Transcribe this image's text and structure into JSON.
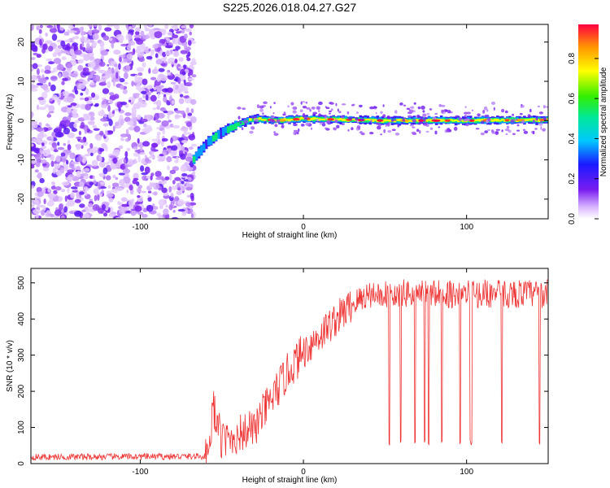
{
  "chart_data": [
    {
      "type": "heatmap",
      "title": "S225.2026.018.04.27.G27",
      "xlabel": "Height of straight line (km)",
      "ylabel": "Frequency (Hz)",
      "xlim": [
        -167,
        150
      ],
      "ylim": [
        -25,
        24.5
      ],
      "xticks": [
        -100,
        0,
        100
      ],
      "yticks": [
        20,
        10,
        0,
        -10,
        -20
      ],
      "xtick_labels": [
        "-100",
        "0",
        "100"
      ],
      "ytick_labels": [
        "20",
        "10",
        "0",
        "-10",
        "-20"
      ],
      "colorbar": {
        "label": "Normalized spectral amplitude",
        "range": [
          0,
          0.97
        ],
        "ticks": [
          0,
          0.2,
          0.4,
          0.6,
          0.8
        ],
        "tick_labels": [
          "0.0",
          "0.2",
          "0.4",
          "0.6",
          "0.8"
        ]
      },
      "noise_region_x": [
        -167,
        -67
      ],
      "signal_track": [
        {
          "x": -67,
          "f": -10,
          "amp": 0.35
        },
        {
          "x": -60,
          "f": -6,
          "amp": 0.3
        },
        {
          "x": -50,
          "f": -3,
          "amp": 0.3
        },
        {
          "x": -40,
          "f": -1,
          "amp": 0.4
        },
        {
          "x": -30,
          "f": 0.5,
          "amp": 0.6
        },
        {
          "x": -15,
          "f": 0,
          "amp": 0.8
        },
        {
          "x": 0,
          "f": 0.5,
          "amp": 0.9
        },
        {
          "x": 50,
          "f": 0,
          "amp": 0.75
        },
        {
          "x": 100,
          "f": 0,
          "amp": 0.8
        },
        {
          "x": 150,
          "f": 0.2,
          "amp": 0.85
        }
      ]
    },
    {
      "type": "line",
      "xlabel": "Height of straight line (km)",
      "ylabel": "SNR (10 * v/v)",
      "xlim": [
        -167,
        150
      ],
      "ylim": [
        0,
        540
      ],
      "xticks": [
        -100,
        0,
        100
      ],
      "yticks": [
        0,
        100,
        200,
        300,
        400,
        500
      ],
      "xtick_labels": [
        "-100",
        "0",
        "100"
      ],
      "ytick_labels": [
        "0",
        "100",
        "200",
        "300",
        "400",
        "500"
      ],
      "series": [
        {
          "name": "SNR",
          "color": "#ee3333",
          "trend": [
            {
              "x": -167,
              "y": 18
            },
            {
              "x": -60,
              "y": 20
            },
            {
              "x": -55,
              "y": 150
            },
            {
              "x": -50,
              "y": 60
            },
            {
              "x": -30,
              "y": 100
            },
            {
              "x": -10,
              "y": 250
            },
            {
              "x": 0,
              "y": 310
            },
            {
              "x": 20,
              "y": 400
            },
            {
              "x": 30,
              "y": 440
            },
            {
              "x": 40,
              "y": 470
            },
            {
              "x": 150,
              "y": 470
            }
          ],
          "dropouts_to": 50,
          "dropouts_x_range": [
            45,
            150
          ]
        }
      ]
    }
  ]
}
